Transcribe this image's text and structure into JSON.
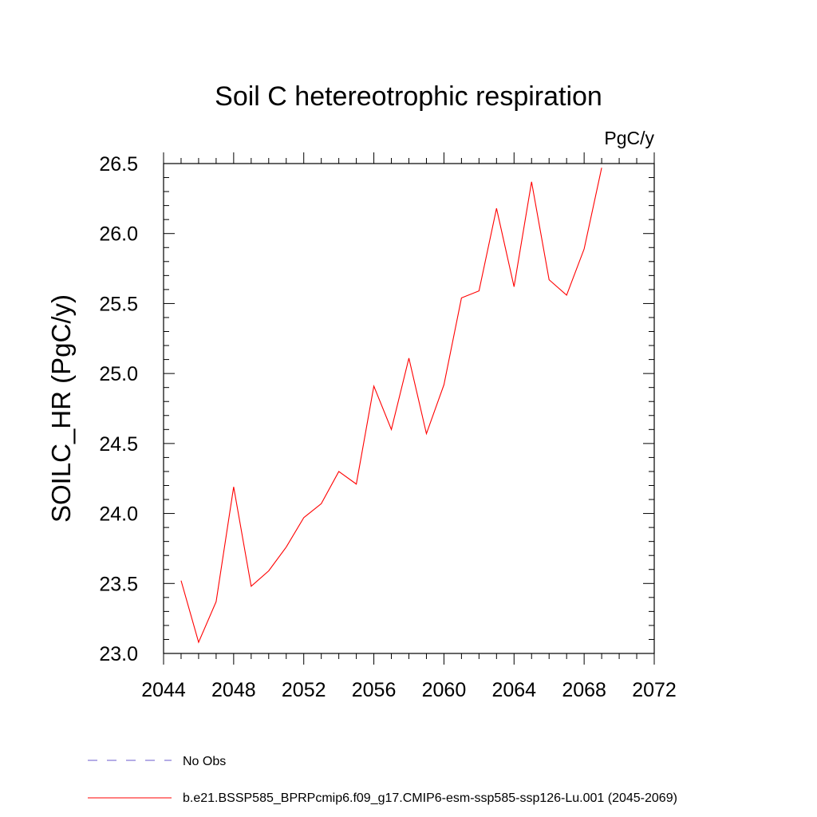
{
  "chart_data": {
    "type": "line",
    "title": "Soil C hetereotrophic respiration",
    "units_label": "PgC/y",
    "ylabel": "SOILC_HR  (PgC/y)",
    "xlabel": "",
    "xlim": [
      2044,
      2072
    ],
    "ylim": [
      23.0,
      26.5
    ],
    "x_ticks": [
      "2044",
      "2048",
      "2052",
      "2056",
      "2060",
      "2064",
      "2068",
      "2072"
    ],
    "y_ticks": [
      "23.0",
      "23.5",
      "24.0",
      "24.5",
      "25.0",
      "25.5",
      "26.0",
      "26.5"
    ],
    "grid": false,
    "legend_position": "bottom-left",
    "series": [
      {
        "name": "b.e21.BSSP585_BPRPcmip6.f09_g17.CMIP6-esm-ssp585-ssp126-Lu.001 (2045-2069)",
        "color": "#ff0000",
        "style": "solid",
        "x": [
          2045,
          2046,
          2047,
          2048,
          2049,
          2050,
          2051,
          2052,
          2053,
          2054,
          2055,
          2056,
          2057,
          2058,
          2059,
          2060,
          2061,
          2062,
          2063,
          2064,
          2065,
          2066,
          2067,
          2068,
          2069
        ],
        "y": [
          23.52,
          23.08,
          23.37,
          24.19,
          23.48,
          23.59,
          23.76,
          23.97,
          24.07,
          24.3,
          24.21,
          24.91,
          24.6,
          25.11,
          24.57,
          24.92,
          25.54,
          25.59,
          26.18,
          25.62,
          26.37,
          25.67,
          25.56,
          25.89,
          26.47
        ]
      },
      {
        "name": "No Obs",
        "color": "#6a5acd",
        "style": "dashed",
        "x": [],
        "y": []
      }
    ]
  }
}
